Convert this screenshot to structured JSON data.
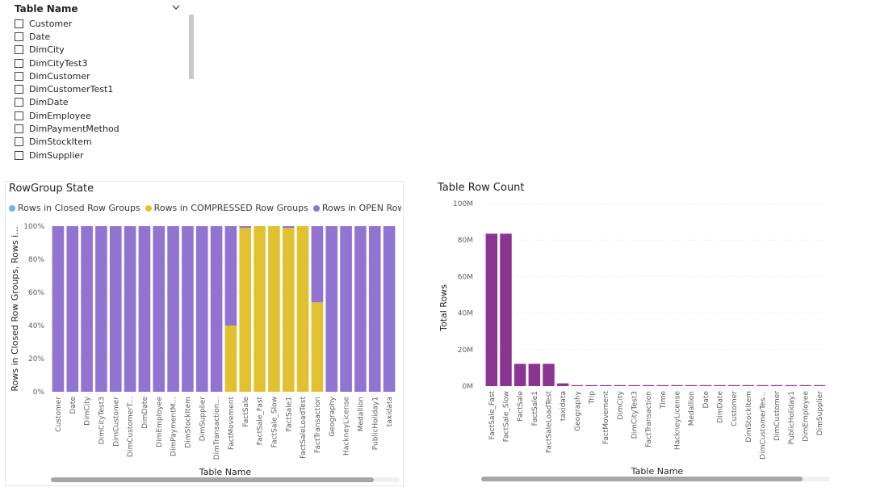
{
  "slicer": {
    "title": "Table Name",
    "items": [
      "Customer",
      "Date",
      "DimCity",
      "DimCityTest3",
      "DimCustomer",
      "DimCustomerTest1",
      "DimDate",
      "DimEmployee",
      "DimPaymentMethod",
      "DimStockItem",
      "DimSupplier"
    ]
  },
  "colors": {
    "closed": "#6CB4EE",
    "compressed": "#E2C130",
    "open": "#9174D1",
    "rowcount": "#8A3591",
    "grid": "#e3e3e3",
    "axis_text": "#605e5c"
  },
  "chart_data": [
    {
      "type": "bar",
      "stacked": "100%",
      "title": "RowGroup State",
      "xlabel": "Table Name",
      "ylabel": "Rows in Closed Row Groups, Rows i...",
      "ylim": [
        0,
        100
      ],
      "yticks": [
        "0%",
        "20%",
        "40%",
        "60%",
        "80%",
        "100%"
      ],
      "legend_position": "top",
      "categories": [
        "Customer",
        "Date",
        "DimCity",
        "DimCityTest3",
        "DimCustomer",
        "DimCustomerT...",
        "DimDate",
        "DimEmployee",
        "DimPaymentM...",
        "DimStockItem",
        "DimSupplier",
        "DimTransaction...",
        "FactMovement",
        "FactSale",
        "FactSale_Fast",
        "FactSale_Slow",
        "FactSale1",
        "FactSaleLoadTest",
        "FactTransaction",
        "Geography",
        "HackneyLicense",
        "Medallion",
        "PublicHoliday1",
        "taxidata"
      ],
      "series": [
        {
          "name": "Rows in Closed Row Groups",
          "values": [
            0,
            0,
            0,
            0,
            0,
            0,
            0,
            0,
            0,
            0,
            0,
            0,
            0,
            0,
            0,
            0,
            0,
            0,
            0,
            0,
            0,
            0,
            0,
            0
          ]
        },
        {
          "name": "Rows in COMPRESSED Row Groups",
          "values": [
            0,
            0,
            0,
            0,
            0,
            0,
            0,
            0,
            0,
            0,
            0,
            0,
            40,
            99,
            100,
            100,
            99,
            100,
            54,
            0,
            0,
            0,
            0,
            0
          ]
        },
        {
          "name": "Rows in OPEN Row G...",
          "values": [
            100,
            100,
            100,
            100,
            100,
            100,
            100,
            100,
            100,
            100,
            100,
            100,
            60,
            1,
            0,
            0,
            1,
            0,
            46,
            100,
            100,
            100,
            100,
            100
          ]
        }
      ]
    },
    {
      "type": "bar",
      "title": "Table Row Count",
      "xlabel": "Table Name",
      "ylabel": "Total Rows",
      "ylim": [
        0,
        100
      ],
      "yticks": [
        "0M",
        "20M",
        "40M",
        "60M",
        "80M",
        "100M"
      ],
      "categories": [
        "FactSale_Fast",
        "FactSale_Slow",
        "FactSale",
        "FactSale1",
        "FactSaleLoadTest",
        "taxidata",
        "Geography",
        "Trip",
        "FactMovement",
        "DimCity",
        "DimCityTest3",
        "FactTransaction",
        "Time",
        "HackneyLicense",
        "Medallion",
        "Date",
        "DimDate",
        "Customer",
        "DimStockItem",
        "DimCustomerTes...",
        "DimCustomer",
        "PublicHoliday1",
        "DimEmployee",
        "DimSupplier"
      ],
      "values": [
        83.5,
        83.5,
        12.2,
        12.2,
        12.2,
        1.5,
        0.3,
        0.3,
        0.2,
        0.1,
        0.1,
        0.1,
        0.1,
        0.1,
        0.1,
        0.05,
        0.05,
        0.05,
        0.05,
        0.05,
        0.05,
        0.05,
        0.05,
        0.05
      ]
    }
  ]
}
